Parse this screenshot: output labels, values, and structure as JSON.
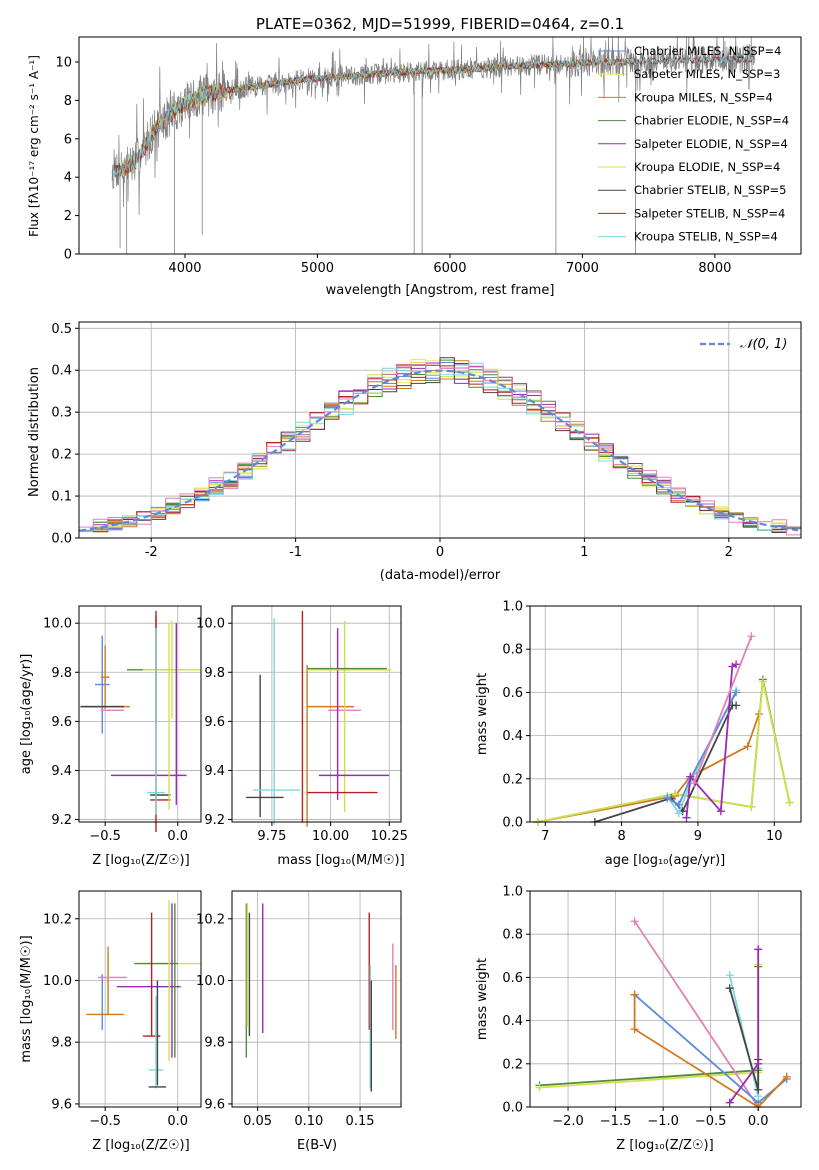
{
  "colors": {
    "chabrier_miles": "#5b8bd9",
    "salpeter_miles": "#e8e870",
    "kroupa_miles": "#d2791f",
    "chabrier_elodie": "#4f8a3f",
    "salpeter_elodie": "#9b2bb5",
    "kroupa_elodie": "#d4e04a",
    "chabrier_stelib": "#444444",
    "salpeter_stelib": "#b52020",
    "kroupa_stelib": "#7fd6de",
    "pink": "#e47fb6",
    "normal": "#5b8bd9"
  },
  "chart_data": [
    {
      "type": "line",
      "title": "PLATE=0362, MJD=51999, FIBERID=0464, z=0.1",
      "xlabel": "wavelength [Angstrom, rest frame]",
      "ylabel": "Flux [fλ10⁻¹⁷ erg cm⁻² s⁻¹ A⁻¹]",
      "xlim": [
        3200,
        8650
      ],
      "ylim": [
        0,
        11.3
      ],
      "xticks": [
        4000,
        5000,
        6000,
        7000,
        8000
      ],
      "yticks": [
        0,
        2,
        4,
        6,
        8,
        10
      ],
      "legend_position": "upper-right",
      "series": [
        {
          "name": "Chabrier MILES, N_SSP=4",
          "color_key": "chabrier_miles",
          "x": [
            3500,
            7400
          ]
        },
        {
          "name": "Salpeter MILES, N_SSP=3",
          "color_key": "salpeter_miles",
          "x": [
            3500,
            7400
          ]
        },
        {
          "name": "Kroupa MILES, N_SSP=4",
          "color_key": "kroupa_miles",
          "x": [
            3500,
            7400
          ]
        },
        {
          "name": "Chabrier ELODIE, N_SSP=4",
          "color_key": "chabrier_elodie",
          "x": [
            3900,
            6800
          ]
        },
        {
          "name": "Salpeter ELODIE, N_SSP=4",
          "color_key": "salpeter_elodie",
          "x": [
            3900,
            6800
          ]
        },
        {
          "name": "Kroupa ELODIE, N_SSP=4",
          "color_key": "kroupa_elodie",
          "x": [
            3900,
            6800
          ]
        },
        {
          "name": "Chabrier STELIB, N_SSP=5",
          "color_key": "chabrier_stelib",
          "x": [
            3200,
            8650
          ]
        },
        {
          "name": "Salpeter STELIB, N_SSP=4",
          "color_key": "salpeter_stelib",
          "x": [
            3200,
            8650
          ]
        },
        {
          "name": "Kroupa STELIB, N_SSP=4",
          "color_key": "kroupa_stelib",
          "x": [
            3200,
            8650
          ]
        }
      ],
      "continuum": {
        "x": [
          3450,
          3550,
          3650,
          3750,
          3850,
          3950,
          4050,
          4150,
          4300,
          4500,
          4700,
          4900,
          5100,
          5300,
          5500,
          5700,
          5900,
          6100,
          6300,
          6500,
          6700,
          6900,
          7100,
          7300,
          7500,
          7700,
          7900,
          8100,
          8300
        ],
        "y": [
          4.4,
          4.5,
          5.0,
          6.3,
          7.0,
          7.6,
          8.0,
          8.3,
          8.5,
          8.7,
          8.9,
          9.1,
          9.2,
          9.3,
          9.4,
          9.5,
          9.55,
          9.6,
          9.7,
          9.8,
          9.85,
          9.9,
          10.0,
          10.0,
          10.05,
          10.1,
          10.1,
          10.1,
          10.2
        ]
      },
      "noise_amplitude": 1.0,
      "dips": [
        {
          "x": 3510,
          "y": 0.3
        },
        {
          "x": 3560,
          "y": 0.0
        },
        {
          "x": 3920,
          "y": 0.0
        },
        {
          "x": 4130,
          "y": 1.0
        },
        {
          "x": 5730,
          "y": 0.0
        },
        {
          "x": 5790,
          "y": 0.0
        },
        {
          "x": 6800,
          "y": 0.0
        },
        {
          "x": 7400,
          "y": 0.0
        }
      ]
    },
    {
      "type": "step",
      "xlabel": "(data-model)/error",
      "ylabel": "Normed distribution",
      "xlim": [
        -2.5,
        2.5
      ],
      "ylim": [
        0,
        0.515
      ],
      "xticks": [
        -2,
        -1,
        0,
        1,
        2
      ],
      "yticks": [
        0.0,
        0.1,
        0.2,
        0.3,
        0.4,
        0.5
      ],
      "bin_width": 0.1,
      "legend": [
        "𝒩(0, 1)"
      ],
      "legend_position": "upper-right",
      "series_color_keys": [
        "chabrier_miles",
        "salpeter_miles",
        "kroupa_miles",
        "chabrier_elodie",
        "salpeter_elodie",
        "kroupa_elodie",
        "chabrier_stelib",
        "salpeter_stelib",
        "kroupa_stelib"
      ],
      "jitter": 0.025
    },
    {
      "type": "errorbar",
      "xlabel": "Z [log₁₀(Z/Z☉)]",
      "ylabel": "age  [log₁₀(age/yr)]",
      "xlim": [
        -0.68,
        0.16
      ],
      "ylim": [
        9.19,
        10.07
      ],
      "xticks": [
        -0.5,
        0.0
      ],
      "xticklabels": [
        "−0.5",
        "0.0"
      ],
      "yticks": [
        9.2,
        9.4,
        9.6,
        9.8,
        10.0
      ],
      "points": [
        {
          "x": -0.52,
          "y": 9.75,
          "xerr": 0.05,
          "yerr": 0.2,
          "c": "chabrier_miles"
        },
        {
          "x": -0.5,
          "y": 9.78,
          "xerr": 0.03,
          "yerr": 0.13,
          "c": "kroupa_miles"
        },
        {
          "x": -0.45,
          "y": 9.645,
          "xerr": 0.08,
          "yerr": 0.0,
          "c": "pink"
        },
        {
          "x": -0.5,
          "y": 9.66,
          "xerr": 0.17,
          "yerr": 0.0,
          "c": "kroupa_miles"
        },
        {
          "x": -0.52,
          "y": 9.66,
          "xerr": 0.15,
          "yerr": 0.0,
          "c": "chabrier_stelib"
        },
        {
          "x": -0.15,
          "y": 9.81,
          "xerr": 0.2,
          "yerr": 0.22,
          "c": "chabrier_elodie"
        },
        {
          "x": -0.04,
          "y": 9.81,
          "xerr": 0.2,
          "yerr": 0.2,
          "c": "kroupa_elodie"
        },
        {
          "x": -0.2,
          "y": 9.38,
          "xerr": 0.26,
          "yerr": 0.0,
          "c": "salpeter_elodie"
        },
        {
          "x": -0.01,
          "y": 9.63,
          "xerr": 0.0,
          "yerr": 0.37,
          "c": "salpeter_elodie"
        },
        {
          "x": -0.15,
          "y": 9.31,
          "xerr": 0.06,
          "yerr": 0.0,
          "c": "kroupa_stelib"
        },
        {
          "x": -0.12,
          "y": 9.3,
          "xerr": 0.07,
          "yerr": 0.0,
          "c": "chabrier_stelib"
        },
        {
          "x": -0.12,
          "y": 9.28,
          "xerr": 0.07,
          "yerr": 0.0,
          "c": "salpeter_stelib"
        },
        {
          "x": -0.15,
          "y": 9.6,
          "xerr": 0.0,
          "yerr": 0.45,
          "c": "salpeter_stelib"
        },
        {
          "x": -0.15,
          "y": 9.6,
          "xerr": 0.0,
          "yerr": 0.38,
          "c": "kroupa_stelib"
        },
        {
          "x": -0.06,
          "y": 9.62,
          "xerr": 0.0,
          "yerr": 0.38,
          "c": "kroupa_elodie"
        }
      ]
    },
    {
      "type": "errorbar",
      "xlabel": "mass [log₁₀(M/M☉)]",
      "ylabel": "",
      "xlim": [
        9.58,
        10.3
      ],
      "ylim": [
        9.19,
        10.07
      ],
      "xticks": [
        9.75,
        10.0,
        10.25
      ],
      "xticklabels": [
        "9.75",
        "10.00",
        "10.25"
      ],
      "yticks": [
        9.2,
        9.4,
        9.6,
        9.8,
        10.0
      ],
      "points": [
        {
          "x": 9.7,
          "y": 9.5,
          "xerr": 0.0,
          "yerr": 0.29,
          "c": "chabrier_stelib"
        },
        {
          "x": 9.76,
          "y": 9.6,
          "xerr": 0.0,
          "yerr": 0.42,
          "c": "kroupa_stelib"
        },
        {
          "x": 9.88,
          "y": 9.62,
          "xerr": 0.0,
          "yerr": 0.43,
          "c": "salpeter_stelib"
        },
        {
          "x": 9.9,
          "y": 9.5,
          "xerr": 0.0,
          "yerr": 0.33,
          "c": "kroupa_miles"
        },
        {
          "x": 10.0,
          "y": 9.66,
          "xerr": 0.1,
          "yerr": 0.0,
          "c": "kroupa_miles"
        },
        {
          "x": 10.06,
          "y": 9.645,
          "xerr": 0.07,
          "yerr": 0.0,
          "c": "pink"
        },
        {
          "x": 10.03,
          "y": 9.63,
          "xerr": 0.0,
          "yerr": 0.35,
          "c": "salpeter_elodie"
        },
        {
          "x": 10.06,
          "y": 9.62,
          "xerr": 0.0,
          "yerr": 0.39,
          "c": "kroupa_elodie"
        },
        {
          "x": 10.08,
          "y": 9.81,
          "xerr": 0.18,
          "yerr": 0.0,
          "c": "kroupa_elodie"
        },
        {
          "x": 10.07,
          "y": 9.815,
          "xerr": 0.17,
          "yerr": 0.0,
          "c": "chabrier_elodie"
        },
        {
          "x": 10.1,
          "y": 9.38,
          "xerr": 0.15,
          "yerr": 0.0,
          "c": "salpeter_elodie"
        },
        {
          "x": 9.77,
          "y": 9.32,
          "xerr": 0.1,
          "yerr": 0.0,
          "c": "kroupa_stelib"
        },
        {
          "x": 9.72,
          "y": 9.29,
          "xerr": 0.08,
          "yerr": 0.0,
          "c": "chabrier_stelib"
        },
        {
          "x": 10.05,
          "y": 9.31,
          "xerr": 0.15,
          "yerr": 0.0,
          "c": "salpeter_stelib"
        }
      ]
    },
    {
      "type": "line",
      "xlabel": "age  [log₁₀(age/yr)]",
      "ylabel": "mass weight",
      "xlim": [
        6.8,
        10.35
      ],
      "ylim": [
        0,
        1.0
      ],
      "xticks": [
        7,
        8,
        9,
        10
      ],
      "yticks": [
        0.0,
        0.2,
        0.4,
        0.6,
        0.8,
        1.0
      ],
      "series": [
        {
          "c": "kroupa_miles",
          "x": [
            6.9,
            8.7,
            8.9,
            9.65,
            9.8
          ],
          "y": [
            0.0,
            0.12,
            0.21,
            0.35,
            0.5
          ]
        },
        {
          "c": "chabrier_elodie",
          "x": [
            6.9,
            8.7,
            9.7,
            9.85,
            10.2
          ],
          "y": [
            0.0,
            0.13,
            0.07,
            0.66,
            0.09
          ]
        },
        {
          "c": "kroupa_elodie",
          "x": [
            6.9,
            8.7,
            9.7,
            9.85,
            10.2
          ],
          "y": [
            0.0,
            0.13,
            0.07,
            0.65,
            0.09
          ]
        },
        {
          "c": "chabrier_stelib",
          "x": [
            7.65,
            8.65,
            8.8,
            9.45,
            9.5
          ],
          "y": [
            0.0,
            0.11,
            0.05,
            0.54,
            0.54
          ]
        },
        {
          "c": "kroupa_stelib",
          "x": [
            8.6,
            8.75,
            8.9,
            9.5
          ],
          "y": [
            0.12,
            0.04,
            0.18,
            0.61
          ]
        },
        {
          "c": "chabrier_miles",
          "x": [
            8.6,
            8.75,
            8.9,
            9.5
          ],
          "y": [
            0.11,
            0.08,
            0.2,
            0.6
          ]
        },
        {
          "c": "salpeter_elodie",
          "x": [
            8.85,
            8.9,
            9.3,
            9.45,
            9.5
          ],
          "y": [
            0.02,
            0.21,
            0.05,
            0.72,
            0.73
          ]
        },
        {
          "c": "pink",
          "x": [
            8.95,
            9.7
          ],
          "y": [
            0.18,
            0.86
          ]
        }
      ]
    },
    {
      "type": "errorbar",
      "xlabel": "Z [log₁₀(Z/Z☉)]",
      "ylabel": "mass [log₁₀(M/M☉)]",
      "xlim": [
        -0.68,
        0.16
      ],
      "ylim": [
        9.59,
        10.29
      ],
      "xticks": [
        -0.5,
        0.0
      ],
      "xticklabels": [
        "−0.5",
        "0.0"
      ],
      "yticks": [
        9.6,
        9.8,
        10.0,
        10.2
      ],
      "points": [
        {
          "x": -0.52,
          "y": 9.93,
          "xerr": 0.0,
          "yerr": 0.09,
          "c": "chabrier_miles"
        },
        {
          "x": -0.48,
          "y": 10.0,
          "xerr": 0.0,
          "yerr": 0.11,
          "c": "kroupa_miles"
        },
        {
          "x": -0.45,
          "y": 10.01,
          "xerr": 0.1,
          "yerr": 0.0,
          "c": "pink"
        },
        {
          "x": -0.5,
          "y": 9.89,
          "xerr": 0.13,
          "yerr": 0.0,
          "c": "kroupa_miles"
        },
        {
          "x": -0.04,
          "y": 10.055,
          "xerr": 0.2,
          "yerr": 0.0,
          "c": "kroupa_elodie"
        },
        {
          "x": -0.15,
          "y": 10.055,
          "xerr": 0.15,
          "yerr": 0.0,
          "c": "chabrier_elodie"
        },
        {
          "x": -0.2,
          "y": 9.98,
          "xerr": 0.22,
          "yerr": 0.0,
          "c": "salpeter_elodie"
        },
        {
          "x": -0.04,
          "y": 10.0,
          "xerr": 0.0,
          "yerr": 0.25,
          "c": "salpeter_elodie"
        },
        {
          "x": -0.06,
          "y": 10.0,
          "xerr": 0.0,
          "yerr": 0.26,
          "c": "kroupa_elodie"
        },
        {
          "x": -0.02,
          "y": 10.0,
          "xerr": 0.0,
          "yerr": 0.25,
          "c": "chabrier_elodie"
        },
        {
          "x": -0.18,
          "y": 10.02,
          "xerr": 0.0,
          "yerr": 0.2,
          "c": "salpeter_stelib"
        },
        {
          "x": -0.18,
          "y": 9.82,
          "xerr": 0.06,
          "yerr": 0.0,
          "c": "salpeter_stelib"
        },
        {
          "x": -0.15,
          "y": 9.8,
          "xerr": 0.0,
          "yerr": 0.15,
          "c": "kroupa_stelib"
        },
        {
          "x": -0.15,
          "y": 9.71,
          "xerr": 0.05,
          "yerr": 0.0,
          "c": "kroupa_stelib"
        },
        {
          "x": -0.14,
          "y": 9.83,
          "xerr": 0.0,
          "yerr": 0.17,
          "c": "chabrier_stelib"
        },
        {
          "x": -0.14,
          "y": 9.655,
          "xerr": 0.06,
          "yerr": 0.0,
          "c": "chabrier_stelib"
        }
      ]
    },
    {
      "type": "errorbar",
      "xlabel": "E(B-V)",
      "ylabel": "",
      "xlim": [
        0.025,
        0.19
      ],
      "ylim": [
        9.59,
        10.29
      ],
      "xticks": [
        0.05,
        0.1,
        0.15
      ],
      "xticklabels": [
        "0.05",
        "0.10",
        "0.15"
      ],
      "yticks": [
        9.6,
        9.8,
        10.0,
        10.2
      ],
      "points": [
        {
          "x": 0.039,
          "y": 10.0,
          "xerr": 0.0,
          "yerr": 0.25,
          "c": "chabrier_elodie"
        },
        {
          "x": 0.04,
          "y": 10.05,
          "xerr": 0.0,
          "yerr": 0.2,
          "c": "kroupa_elodie"
        },
        {
          "x": 0.042,
          "y": 10.02,
          "xerr": 0.0,
          "yerr": 0.2,
          "c": "chabrier_stelib"
        },
        {
          "x": 0.055,
          "y": 10.04,
          "xerr": 0.0,
          "yerr": 0.21,
          "c": "salpeter_elodie"
        },
        {
          "x": 0.159,
          "y": 10.03,
          "xerr": 0.0,
          "yerr": 0.19,
          "c": "salpeter_stelib"
        },
        {
          "x": 0.16,
          "y": 9.85,
          "xerr": 0.0,
          "yerr": 0.2,
          "c": "kroupa_stelib"
        },
        {
          "x": 0.161,
          "y": 9.82,
          "xerr": 0.0,
          "yerr": 0.18,
          "c": "chabrier_stelib"
        },
        {
          "x": 0.182,
          "y": 9.98,
          "xerr": 0.0,
          "yerr": 0.14,
          "c": "pink"
        },
        {
          "x": 0.185,
          "y": 9.93,
          "xerr": 0.0,
          "yerr": 0.12,
          "c": "kroupa_miles"
        }
      ]
    },
    {
      "type": "line",
      "xlabel": "Z [log₁₀(Z/Z☉)]",
      "ylabel": "mass weight",
      "xlim": [
        -2.4,
        0.45
      ],
      "ylim": [
        0,
        1.0
      ],
      "xticks": [
        -2.0,
        -1.5,
        -1.0,
        -0.5,
        0.0
      ],
      "xticklabels": [
        "−2.0",
        "−1.5",
        "−1.0",
        "−0.5",
        "0.0"
      ],
      "yticks": [
        0.0,
        0.2,
        0.4,
        0.6,
        0.8,
        1.0
      ],
      "series": [
        {
          "c": "chabrier_elodie",
          "x": [
            -2.3,
            0.0,
            0.0
          ],
          "y": [
            0.1,
            0.17,
            0.65
          ]
        },
        {
          "c": "kroupa_elodie",
          "x": [
            -2.3,
            0.0,
            0.0
          ],
          "y": [
            0.09,
            0.16,
            0.66
          ]
        },
        {
          "c": "pink",
          "x": [
            -1.3,
            0.0
          ],
          "y": [
            0.86,
            0.0
          ]
        },
        {
          "c": "chabrier_miles",
          "x": [
            -1.3,
            0.0,
            0.3
          ],
          "y": [
            0.52,
            0.02,
            0.13
          ]
        },
        {
          "c": "kroupa_miles",
          "x": [
            -1.3,
            -1.3,
            0.0,
            0.3
          ],
          "y": [
            0.52,
            0.36,
            0.0,
            0.14
          ]
        },
        {
          "c": "kroupa_stelib",
          "x": [
            -0.3,
            0.0,
            0.0
          ],
          "y": [
            0.61,
            0.05,
            0.18
          ]
        },
        {
          "c": "chabrier_stelib",
          "x": [
            -0.3,
            0.0,
            0.0
          ],
          "y": [
            0.55,
            0.08,
            0.22
          ]
        },
        {
          "c": "salpeter_elodie",
          "x": [
            -0.3,
            0.0,
            0.0
          ],
          "y": [
            0.02,
            0.2,
            0.73
          ]
        }
      ]
    }
  ]
}
